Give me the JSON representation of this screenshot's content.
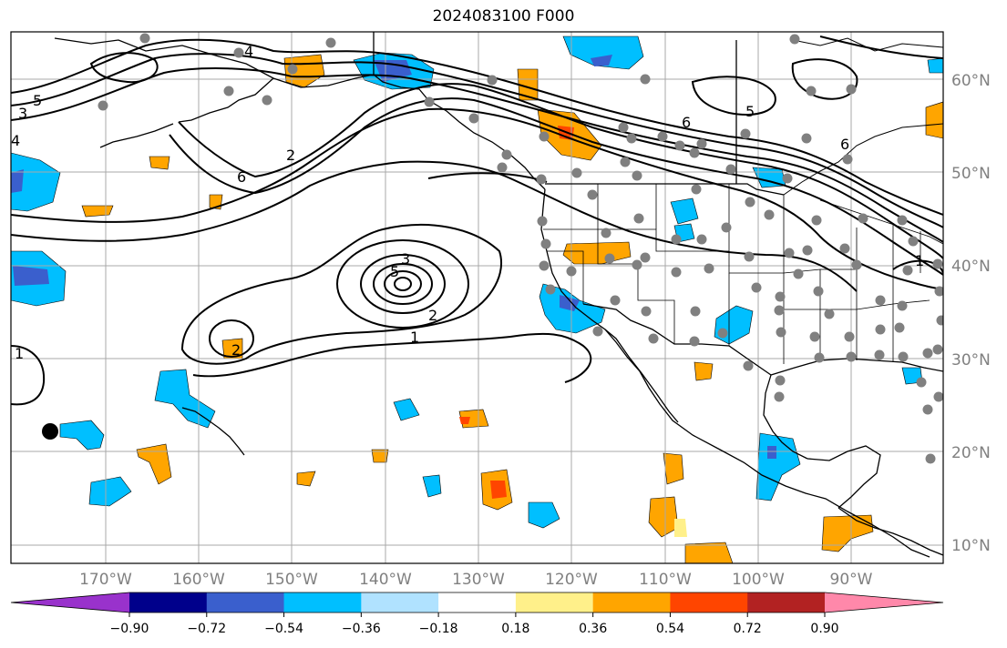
{
  "title": "2024083100 F000",
  "lat_labels": [
    "60°N",
    "50°N",
    "40°N",
    "30°N",
    "20°N",
    "10°N"
  ],
  "lon_labels": [
    "170°W",
    "160°W",
    "150°W",
    "140°W",
    "130°W",
    "120°W",
    "110°W",
    "100°W",
    "90°W"
  ],
  "colorbar": {
    "colors": [
      "#9932cc",
      "#00008b",
      "#3a5fcd",
      "#00bfff",
      "#b0e2ff",
      "#ffffff",
      "#fff08a",
      "#ffa500",
      "#ff4500",
      "#b22222",
      "#ff88aa"
    ],
    "tick_labels": [
      "−0.90",
      "−0.72",
      "−0.54",
      "−0.36",
      "−0.18",
      "0.18",
      "0.36",
      "0.54",
      "0.72",
      "0.90"
    ]
  },
  "contour_labels": [
    "3",
    "4",
    "5",
    "6",
    "2",
    "1",
    "4",
    "5",
    "6",
    "3",
    "2",
    "1",
    "5",
    "6",
    "2",
    "1"
  ],
  "colors": {
    "land_outline": "#000000",
    "grid": "#a9a9a9",
    "station": "#808080"
  }
}
